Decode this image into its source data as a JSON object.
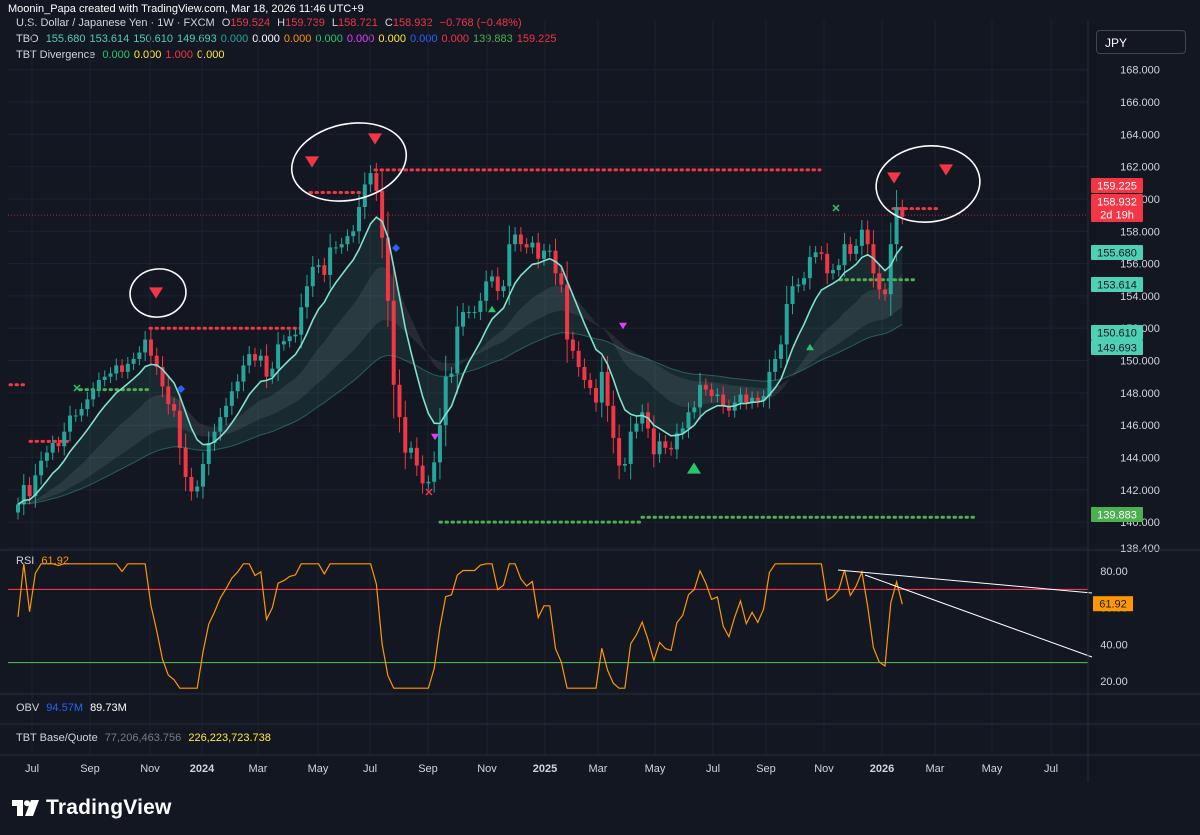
{
  "header": {
    "attribution": "Moonin_Papa created with TradingView.com, Mar 18, 2026 11:46 UTC+9"
  },
  "symbol_box": {
    "label": "JPY"
  },
  "legend_main": {
    "symbol": "U.S. Dollar / Japanese Yen · 1W · FXCM",
    "o_label": "O",
    "o": "159.524",
    "h_label": "H",
    "h": "159.739",
    "l_label": "L",
    "l": "158.721",
    "c_label": "C",
    "c": "158.932",
    "chg": "−0.768 (−0.48%)"
  },
  "legend_tbo": {
    "name": "TBO",
    "values": [
      {
        "v": "155.680",
        "color": "#4dd0b4"
      },
      {
        "v": "153.614",
        "color": "#4dd0b4"
      },
      {
        "v": "150.610",
        "color": "#4dd0b4"
      },
      {
        "v": "149.693",
        "color": "#4dd0b4"
      },
      {
        "v": "0.000",
        "color": "#26a69a"
      },
      {
        "v": "0.000",
        "color": "#ffffff"
      },
      {
        "v": "0.000",
        "color": "#ff9800"
      },
      {
        "v": "0.000",
        "color": "#26c76a"
      },
      {
        "v": "0.000",
        "color": "#e040fb"
      },
      {
        "v": "0.000",
        "color": "#ffeb3b"
      },
      {
        "v": "0.000",
        "color": "#2962ff"
      },
      {
        "v": "0.000",
        "color": "#f23645"
      },
      {
        "v": "139.883",
        "color": "#4caf50"
      },
      {
        "v": "159.225",
        "color": "#f23645"
      }
    ]
  },
  "legend_div": {
    "name": "TBT Divergence",
    "values": [
      {
        "v": "0.000",
        "color": "#26c76a"
      },
      {
        "v": "0.000",
        "color": "#ffeb3b"
      },
      {
        "v": "1.000",
        "color": "#f23645"
      },
      {
        "v": "0.000",
        "color": "#ffeb3b"
      }
    ]
  },
  "legend_rsi": {
    "name": "RSI",
    "value": "61.92"
  },
  "legend_obv": {
    "name": "OBV",
    "v1": "94.57M",
    "v2": "89.73M"
  },
  "legend_base": {
    "name": "TBT Base/Quote",
    "v1": "77,206,463.756",
    "v2": "226,223,723.738"
  },
  "footer": {
    "logo": "TradingView"
  },
  "chart_data": {
    "type": "candlestick",
    "title": "U.S. Dollar / Japanese Yen · 1W · FXCM",
    "x_ticks": [
      "Jul",
      "Sep",
      "Nov",
      "2024",
      "Mar",
      "May",
      "Jul",
      "Sep",
      "Nov",
      "2025",
      "Mar",
      "May",
      "Jul",
      "Sep",
      "Nov",
      "2026",
      "Mar",
      "May",
      "Jul"
    ],
    "y_ticks": [
      "168.000",
      "166.000",
      "164.000",
      "162.000",
      "160.000",
      "158.000",
      "156.000",
      "154.000",
      "152.000",
      "150.000",
      "148.000",
      "146.000",
      "144.000",
      "142.000",
      "140.000",
      "138.400"
    ],
    "ylim": [
      138.4,
      168.6
    ],
    "closes": [
      141.1,
      142.3,
      141.6,
      142.9,
      143.8,
      144.3,
      144.9,
      144.7,
      145.6,
      146.6,
      146.6,
      147.0,
      147.6,
      148.2,
      148.8,
      149.0,
      149.2,
      149.7,
      149.3,
      149.8,
      150.1,
      150.5,
      151.3,
      150.3,
      149.6,
      148.4,
      147.3,
      146.9,
      144.6,
      142.8,
      141.9,
      142.2,
      143.6,
      144.9,
      145.6,
      146.5,
      147.2,
      148.1,
      148.7,
      149.7,
      150.4,
      150.0,
      150.3,
      149.0,
      149.5,
      151.0,
      151.2,
      151.5,
      151.6,
      153.3,
      154.6,
      155.8,
      155.9,
      155.3,
      157.0,
      157.0,
      157.2,
      157.7,
      158.0,
      159.5,
      160.9,
      161.6,
      160.5,
      157.6,
      153.7,
      148.5,
      146.5,
      144.3,
      144.6,
      143.5,
      142.4,
      142.5,
      143.7,
      146.0,
      149.0,
      149.2,
      152.1,
      153.0,
      153.0,
      153.0,
      153.7,
      154.9,
      155.2,
      154.3,
      154.6,
      157.2,
      157.8,
      157.2,
      157.0,
      157.3,
      156.3,
      156.8,
      156.8,
      155.4,
      154.7,
      151.3,
      150.6,
      149.6,
      148.8,
      148.3,
      147.4,
      149.3,
      147.2,
      145.2,
      143.5,
      143.6,
      145.6,
      146.1,
      146.8,
      145.8,
      144.2,
      145.0,
      144.6,
      144.5,
      145.5,
      145.8,
      146.8,
      147.1,
      148.5,
      148.2,
      147.8,
      147.9,
      147.2,
      146.9,
      147.4,
      147.9,
      147.4,
      147.7,
      147.5,
      147.8,
      149.3,
      150.1,
      151.0,
      153.5,
      154.6,
      154.7,
      155.1,
      156.4,
      156.7,
      156.6,
      155.4,
      155.6,
      155.9,
      157.2,
      156.6,
      157.1,
      158.1,
      157.2,
      155.4,
      154.4,
      154.1,
      157.2,
      159.5,
      158.9
    ],
    "rsi_ticks": [
      "80.00",
      "60.00",
      "40.00",
      "20.00"
    ],
    "rsi_levels": {
      "overbought": 70,
      "oversold": 30
    },
    "rsi_last": 61.92,
    "price_labels": [
      {
        "v": "159.225",
        "bg": "#f23645",
        "fg": "#ffffff"
      },
      {
        "v": "158.932",
        "bg": "#f23645",
        "fg": "#ffffff"
      },
      {
        "v": "2d 19h",
        "bg": "#f23645",
        "fg": "#ffffff"
      },
      {
        "v": "155.680",
        "bg": "#4dd0b4",
        "fg": "#131722"
      },
      {
        "v": "153.614",
        "bg": "#4dd0b4",
        "fg": "#131722"
      },
      {
        "v": "150.610",
        "bg": "#4dd0b4",
        "fg": "#131722"
      },
      {
        "v": "149.693",
        "bg": "#4dd0b4",
        "fg": "#131722"
      },
      {
        "v": "139.883",
        "bg": "#4caf50",
        "fg": "#ffffff"
      }
    ],
    "colors": {
      "up": "#26a69a",
      "down": "#f23645",
      "fast_ma": "#7fe3cd",
      "ma_pink": "#f48fb1",
      "rsi_line": "#ff9800",
      "resist": "#f23645",
      "support": "#4caf50",
      "ob": "#f23645",
      "os": "#4caf50"
    }
  }
}
